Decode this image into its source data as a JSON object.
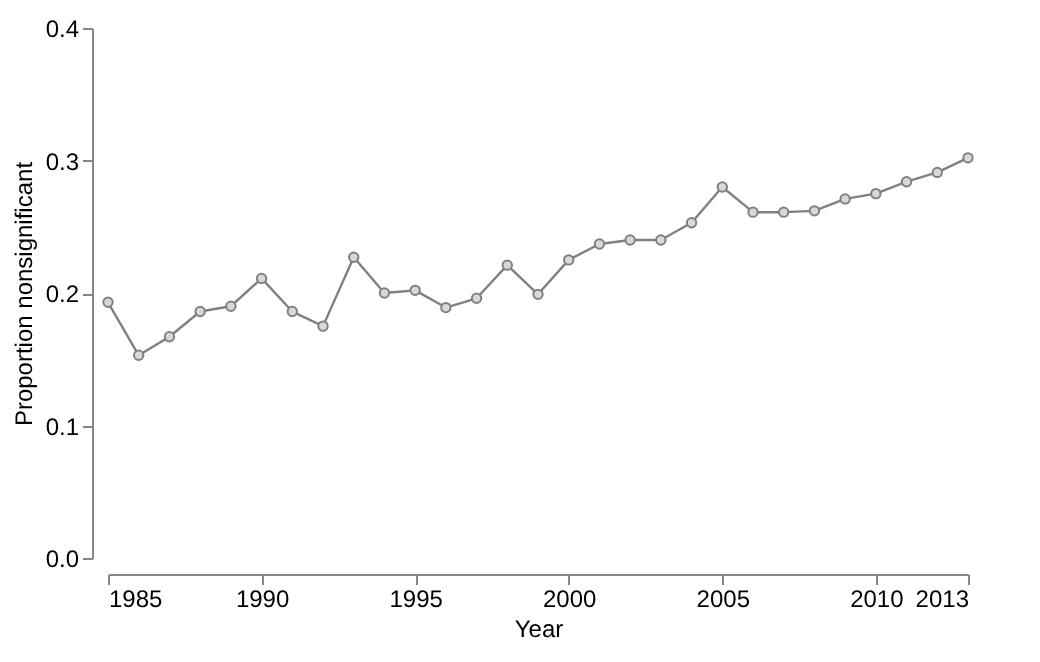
{
  "chart_data": {
    "type": "line",
    "xlabel": "Year",
    "ylabel": "Proportion nonsignificant",
    "x": [
      1985,
      1986,
      1987,
      1988,
      1989,
      1990,
      1991,
      1992,
      1993,
      1994,
      1995,
      1996,
      1997,
      1998,
      1999,
      2000,
      2001,
      2002,
      2003,
      2004,
      2005,
      2006,
      2007,
      2008,
      2009,
      2010,
      2011,
      2012,
      2013
    ],
    "series": [
      {
        "color": "#808080",
        "values": [
          0.193,
          0.153,
          0.167,
          0.186,
          0.19,
          0.211,
          0.186,
          0.175,
          0.227,
          0.2,
          0.202,
          0.189,
          0.196,
          0.221,
          0.199,
          0.225,
          0.237,
          0.24,
          0.24,
          0.253,
          0.28,
          0.261,
          0.261,
          0.262,
          0.271,
          0.275,
          0.284,
          0.291,
          0.302
        ]
      }
    ],
    "xlim": [
      1985,
      2013
    ],
    "xticks": [
      1985,
      1990,
      1995,
      2000,
      2005,
      2010,
      2013
    ],
    "ylim": [
      0,
      0.4
    ],
    "yticks": [
      {
        "value": 0,
        "label": "0.0"
      },
      0.1,
      0.2,
      0.3,
      0.4
    ],
    "marker": "circle",
    "line_style": "solid",
    "grid": false
  }
}
